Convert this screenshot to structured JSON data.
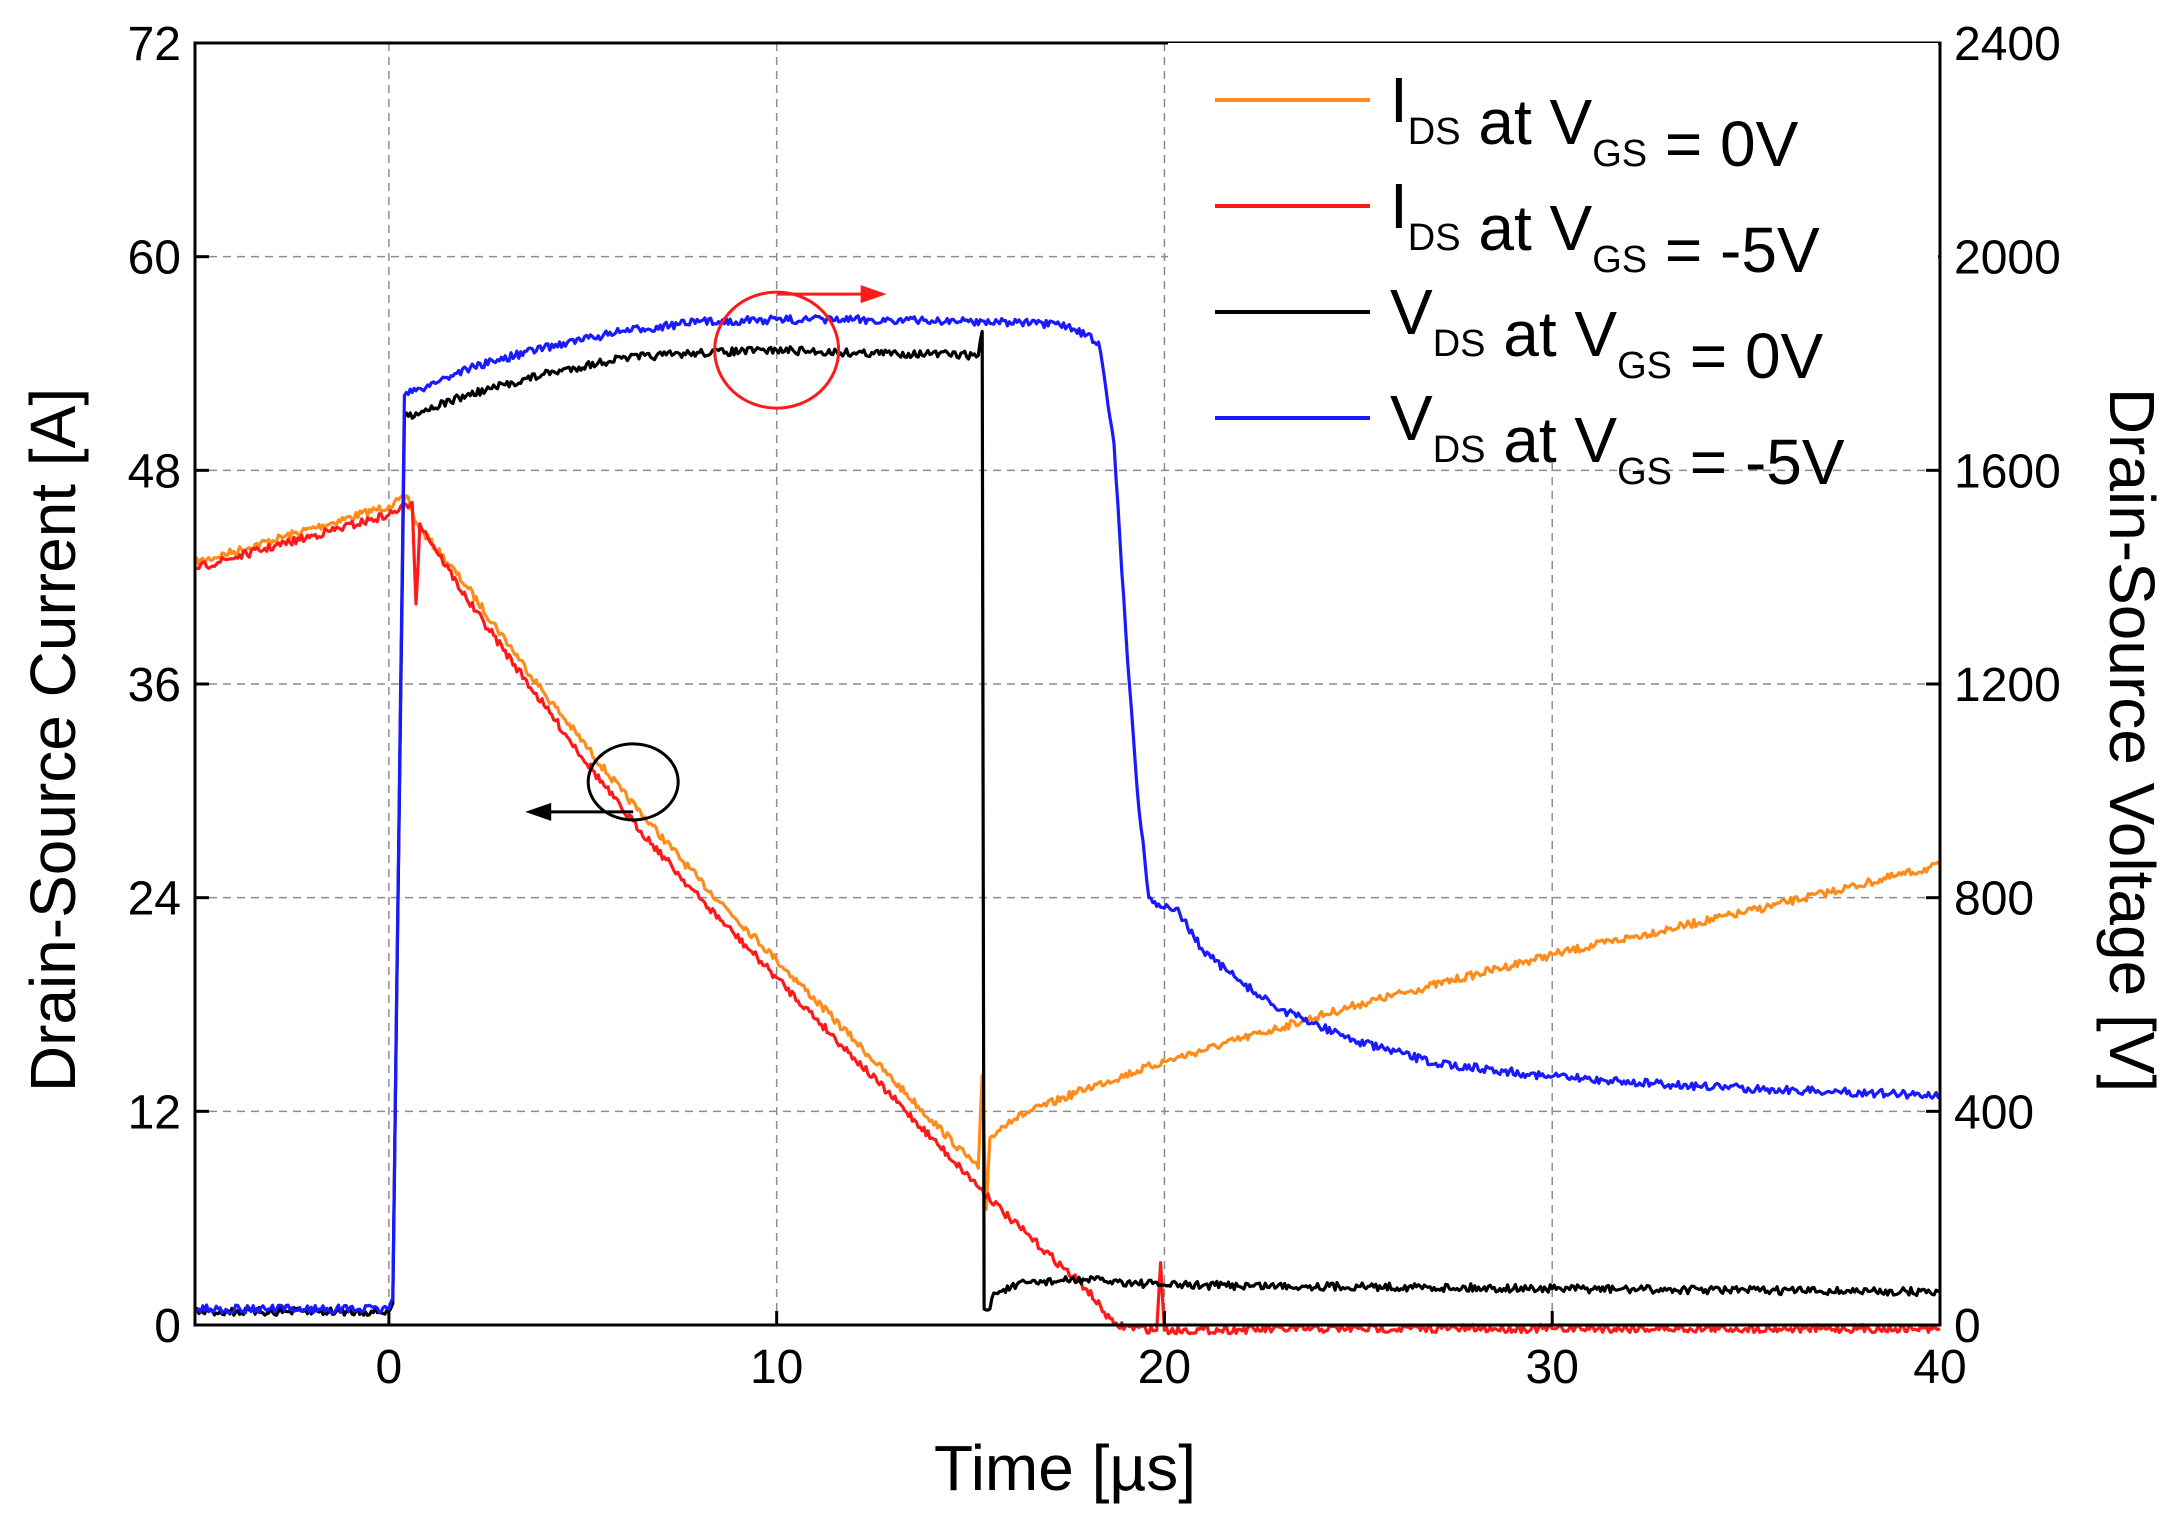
{
  "chart_data": {
    "type": "line",
    "xlabel": "Time [µs]",
    "ylabel": "Drain-Source Current [A]",
    "y2label": "Drain-Source Voltage [V]",
    "xlim": [
      -5,
      40
    ],
    "ylim": [
      0,
      72
    ],
    "y2lim": [
      0,
      2400
    ],
    "x_ticks": [
      0,
      10,
      20,
      30,
      40
    ],
    "y_ticks": [
      0,
      12,
      24,
      36,
      48,
      60,
      72
    ],
    "y2_ticks": [
      0,
      400,
      800,
      1200,
      1600,
      2000,
      2400
    ],
    "grid": true,
    "legend_position": "top-right",
    "series": [
      {
        "name": "I_DS at V_GS = 0V",
        "legend": {
          "main": "I",
          "sub1": "DS",
          "mid": " at V",
          "sub2": "GS",
          "tail": " = 0V"
        },
        "axis": "left",
        "color": "#FF8C1A",
        "points": [
          [
            -5,
            42.8
          ],
          [
            0,
            46
          ],
          [
            0.5,
            46.5
          ],
          [
            0.7,
            45
          ],
          [
            2,
            41.5
          ],
          [
            4,
            35.5
          ],
          [
            6,
            30
          ],
          [
            8,
            25
          ],
          [
            10,
            20.5
          ],
          [
            12,
            16
          ],
          [
            14,
            11.5
          ],
          [
            15.2,
            8.8
          ],
          [
            15.3,
            14
          ],
          [
            15.4,
            6.5
          ],
          [
            15.5,
            10.5
          ],
          [
            16,
            11.5
          ],
          [
            18,
            13.3
          ],
          [
            20,
            14.8
          ],
          [
            25,
            18
          ],
          [
            30,
            20.8
          ],
          [
            35,
            23.2
          ],
          [
            40,
            25.8
          ]
        ]
      },
      {
        "name": "I_DS at V_GS = -5V",
        "legend": {
          "main": "I",
          "sub1": "DS",
          "mid": " at V",
          "sub2": "GS",
          "tail": " = -5V"
        },
        "axis": "left",
        "color": "#FF1A1A",
        "points": [
          [
            -5,
            42.5
          ],
          [
            0,
            45.5
          ],
          [
            0.6,
            46.2
          ],
          [
            0.7,
            40.5
          ],
          [
            0.8,
            45
          ],
          [
            2,
            40.8
          ],
          [
            4,
            34.8
          ],
          [
            6,
            29
          ],
          [
            8,
            24
          ],
          [
            10,
            19.5
          ],
          [
            12,
            15
          ],
          [
            14,
            10.5
          ],
          [
            16,
            6
          ],
          [
            18,
            2
          ],
          [
            18.7,
            0
          ],
          [
            19.8,
            -0.3
          ],
          [
            19.9,
            3.5
          ],
          [
            20,
            -0.3
          ],
          [
            25,
            -0.2
          ],
          [
            30,
            -0.2
          ],
          [
            35,
            -0.2
          ],
          [
            40,
            -0.2
          ]
        ]
      },
      {
        "name": "V_DS at V_GS = 0V",
        "legend": {
          "main": "V",
          "sub1": "DS",
          "mid": " at V",
          "sub2": "GS",
          "tail": " = 0V"
        },
        "axis": "right",
        "color": "#000000",
        "points": [
          [
            -5,
            25
          ],
          [
            0,
            25
          ],
          [
            0.1,
            40
          ],
          [
            0.4,
            1700
          ],
          [
            2,
            1740
          ],
          [
            4,
            1780
          ],
          [
            6,
            1810
          ],
          [
            8,
            1820
          ],
          [
            10,
            1825
          ],
          [
            12,
            1820
          ],
          [
            14,
            1818
          ],
          [
            15.2,
            1815
          ],
          [
            15.3,
            1860
          ],
          [
            15.35,
            30
          ],
          [
            15.5,
            30
          ],
          [
            15.6,
            60
          ],
          [
            16.5,
            80
          ],
          [
            18,
            85
          ],
          [
            20,
            75
          ],
          [
            25,
            72
          ],
          [
            30,
            68
          ],
          [
            35,
            65
          ],
          [
            40,
            62
          ]
        ]
      },
      {
        "name": "V_DS at V_GS = -5V",
        "legend": {
          "main": "V",
          "sub1": "DS",
          "mid": " at V",
          "sub2": "GS",
          "tail": " = -5V"
        },
        "axis": "right",
        "color": "#1A1AFF",
        "points": [
          [
            -5,
            30
          ],
          [
            0,
            30
          ],
          [
            0.1,
            50
          ],
          [
            0.4,
            1740
          ],
          [
            2,
            1790
          ],
          [
            4,
            1830
          ],
          [
            6,
            1860
          ],
          [
            8,
            1878
          ],
          [
            10,
            1882
          ],
          [
            12,
            1882
          ],
          [
            14,
            1880
          ],
          [
            16,
            1878
          ],
          [
            17.5,
            1870
          ],
          [
            18.3,
            1840
          ],
          [
            18.7,
            1650
          ],
          [
            19,
            1300
          ],
          [
            19.3,
            1000
          ],
          [
            19.6,
            800
          ],
          [
            20,
            780
          ],
          [
            20.3,
            780
          ],
          [
            21,
            700
          ],
          [
            22,
            640
          ],
          [
            23,
            590
          ],
          [
            25,
            530
          ],
          [
            27,
            490
          ],
          [
            30,
            465
          ],
          [
            33,
            450
          ],
          [
            36,
            440
          ],
          [
            40,
            430
          ]
        ]
      }
    ],
    "annotations": [
      {
        "type": "ellipse",
        "color": "#FF1A1A",
        "cx": 10,
        "cy_axis": "right",
        "cy": 1825,
        "arrow": "right"
      },
      {
        "type": "ellipse",
        "color": "#000000",
        "cx": 6.3,
        "cy_axis": "left",
        "cy": 30.5,
        "arrow": "left"
      }
    ]
  }
}
